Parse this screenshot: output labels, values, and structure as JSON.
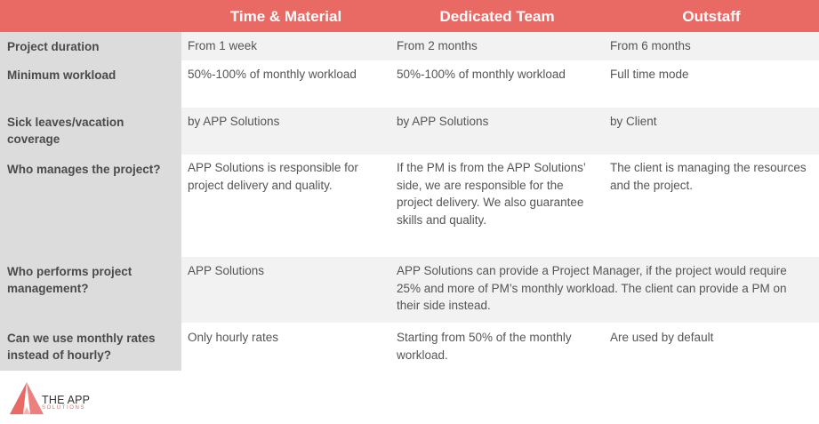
{
  "header": {
    "col1": "Time & Material",
    "col2": "Dedicated Team",
    "col3": "Outstaff"
  },
  "rows": [
    {
      "label": "Project duration",
      "tm": "From 1 week",
      "dt": "From 2 months",
      "os": "From 6 months"
    },
    {
      "label": "Minimum workload",
      "tm": "50%-100% of monthly workload",
      "dt": "50%-100% of monthly workload",
      "os": "Full time mode"
    },
    {
      "label": "Sick leaves/vacation coverage",
      "tm": "by APP Solutions",
      "dt": "by APP Solutions",
      "os": "by Client"
    },
    {
      "label": "Who manages the project?",
      "tm": "APP Solutions is responsible for project delivery and quality.",
      "dt": "If the PM is from the APP Solutions’ side, we are responsible for the project delivery. We also guarantee skills and quality.",
      "os": "The client is managing the resources and the project."
    },
    {
      "label": "Who performs project management?",
      "tm": "APP Solutions",
      "dt_os": "APP Solutions can provide a Project Manager, if the project would require 25% and more of PM’s monthly workload. The client can provide a PM on their side instead."
    },
    {
      "label": "Can we use monthly rates instead of hourly?",
      "tm": "Only hourly rates",
      "dt": "Starting from 50% of the monthly workload.",
      "os": "Are used by default"
    }
  ],
  "logo": {
    "title": "THE APP",
    "subtitle": "SOLUTIONS",
    "icon": "triangle-logo-icon"
  },
  "colors": {
    "accent": "#e96a65",
    "label_column": "#dcdcdc",
    "alt_row": "#f2f2f2"
  }
}
